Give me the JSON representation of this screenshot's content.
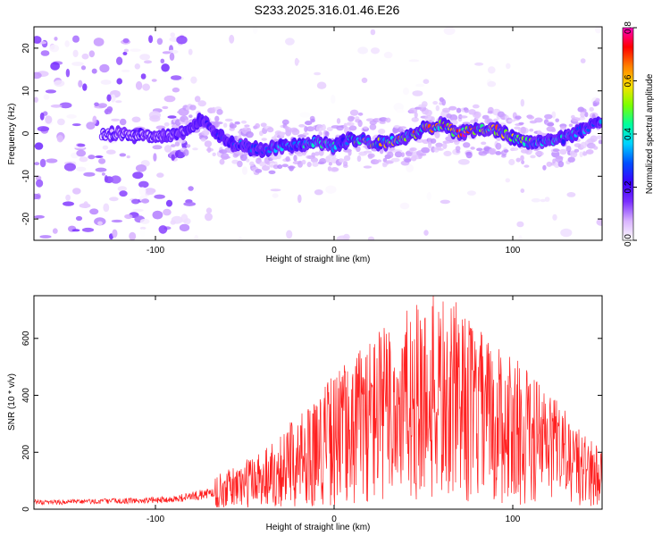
{
  "title": "S233.2025.316.01.46.E26",
  "chart_data": [
    {
      "type": "heatmap",
      "name": "spectrogram",
      "xlabel": "Height of straight line (km)",
      "ylabel": "Frequency (Hz)",
      "xlim": [
        -168,
        150
      ],
      "ylim": [
        -25,
        25
      ],
      "xticks": [
        -100,
        0,
        100
      ],
      "yticks": [
        -20,
        -10,
        0,
        10,
        20
      ],
      "colorbar": {
        "label": "Normalized spectral amplitude",
        "range": [
          0,
          0.8
        ],
        "ticks": [
          0.0,
          0.2,
          0.4,
          0.6,
          0.8
        ],
        "colormap": [
          "#ffffff",
          "#d9b3ff",
          "#7b2fff",
          "#3a00ff",
          "#0050ff",
          "#00d2ff",
          "#00ff9c",
          "#7cff00",
          "#ffe000",
          "#ff8000",
          "#ff0000",
          "#ff00c0"
        ]
      },
      "ridge": {
        "x": [
          -168,
          -120,
          -100,
          -85,
          -75,
          -70,
          -60,
          -50,
          -40,
          -30,
          -20,
          -10,
          0,
          10,
          20,
          30,
          40,
          50,
          60,
          70,
          80,
          90,
          100,
          110,
          120,
          130,
          140,
          150
        ],
        "freq": [
          0,
          0,
          -1,
          0,
          3,
          2,
          -2,
          -3,
          -4,
          -3,
          -3,
          -2,
          -3,
          -1,
          -2,
          -2,
          -1,
          1,
          2,
          0,
          1,
          1,
          -1,
          -2,
          -2,
          -1,
          1,
          3
        ],
        "amplitude": [
          0.05,
          0.08,
          0.12,
          0.2,
          0.22,
          0.25,
          0.3,
          0.35,
          0.3,
          0.4,
          0.45,
          0.5,
          0.45,
          0.55,
          0.6,
          0.65,
          0.7,
          0.72,
          0.75,
          0.8,
          0.78,
          0.7,
          0.6,
          0.5,
          0.45,
          0.45,
          0.4,
          0.35
        ]
      }
    },
    {
      "type": "line",
      "name": "snr",
      "xlabel": "Height of straight line (km)",
      "ylabel": "SNR (10 * v/v)",
      "xlim": [
        -168,
        150
      ],
      "ylim": [
        0,
        750
      ],
      "xticks": [
        -100,
        0,
        100
      ],
      "yticks": [
        0,
        200,
        400,
        600
      ],
      "series": [
        {
          "name": "SNR",
          "color": "#ff2020",
          "x": [
            -168,
            -150,
            -130,
            -110,
            -100,
            -90,
            -80,
            -70,
            -60,
            -50,
            -40,
            -30,
            -20,
            -10,
            0,
            10,
            20,
            30,
            40,
            50,
            60,
            70,
            80,
            90,
            100,
            110,
            120,
            130,
            140,
            150
          ],
          "y": [
            25,
            25,
            28,
            30,
            32,
            35,
            45,
            55,
            70,
            90,
            115,
            140,
            170,
            210,
            250,
            280,
            320,
            340,
            360,
            380,
            390,
            370,
            330,
            300,
            280,
            250,
            220,
            180,
            140,
            110
          ]
        }
      ]
    }
  ]
}
